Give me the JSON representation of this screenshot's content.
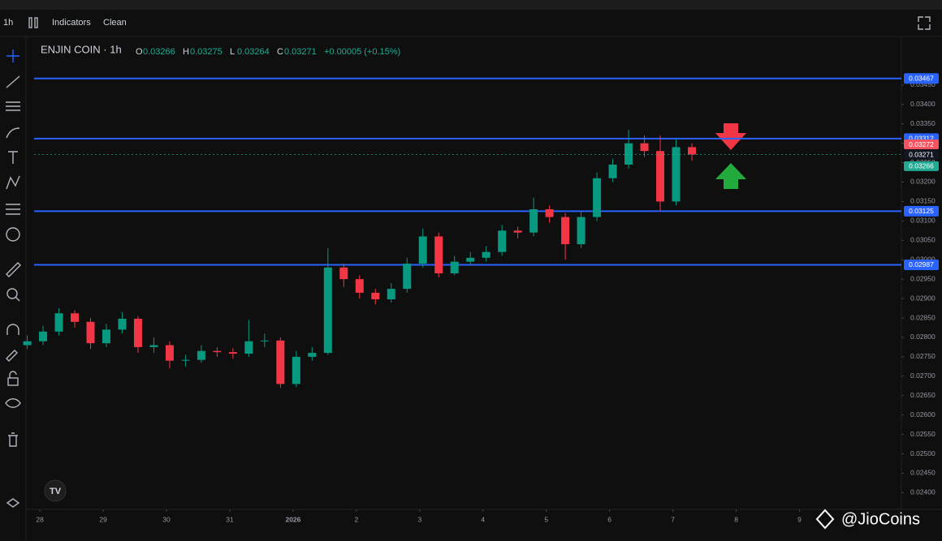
{
  "toolbar": {
    "interval": "1h",
    "indicators": "Indicators",
    "clean": "Clean"
  },
  "chart_data": {
    "type": "candlestick",
    "symbol": "ENJIN COIN · 1h",
    "ohlc_legend": [
      {
        "key": "O",
        "value": "0.03266"
      },
      {
        "key": "H",
        "value": "0.03275"
      },
      {
        "key": "L",
        "value": "0.03264"
      },
      {
        "key": "C",
        "value": "0.03271"
      }
    ],
    "change": "+0.00005 (+0.15%)",
    "x": [
      -0.2,
      0.05,
      0.3,
      0.55,
      0.8,
      1.05,
      1.3,
      1.55,
      1.8,
      2.05,
      2.3,
      2.55,
      2.8,
      3.05,
      3.3,
      3.55,
      3.8,
      4.05,
      4.3,
      4.55,
      4.8,
      5.05,
      5.3,
      5.55,
      5.8,
      6.05,
      6.3,
      6.55,
      6.8,
      7.05,
      7.3,
      7.55,
      7.8,
      8.05,
      8.3,
      8.55,
      8.8,
      9.05,
      9.3,
      9.55,
      9.8,
      10.05,
      10.3
    ],
    "open": [
      0.0278,
      0.0279,
      0.02815,
      0.02862,
      0.0284,
      0.02785,
      0.0282,
      0.02848,
      0.02775,
      0.0278,
      0.0274,
      0.02742,
      0.02765,
      0.02762,
      0.02758,
      0.0279,
      0.02792,
      0.0268,
      0.0275,
      0.0276,
      0.0298,
      0.0295,
      0.02915,
      0.02898,
      0.02925,
      0.0299,
      0.0306,
      0.02965,
      0.02995,
      0.03005,
      0.0302,
      0.03075,
      0.0307,
      0.0313,
      0.0311,
      0.0304,
      0.0311,
      0.0321,
      0.03245,
      0.033,
      0.0328,
      0.0315,
      0.0329
    ],
    "high": [
      0.02805,
      0.0283,
      0.02875,
      0.0287,
      0.0285,
      0.02835,
      0.02865,
      0.02855,
      0.028,
      0.0279,
      0.02755,
      0.0278,
      0.02775,
      0.02772,
      0.02845,
      0.0281,
      0.028,
      0.02765,
      0.02775,
      0.0303,
      0.0299,
      0.0296,
      0.02925,
      0.0294,
      0.03005,
      0.0308,
      0.0307,
      0.0301,
      0.0302,
      0.03035,
      0.0309,
      0.03085,
      0.0316,
      0.0314,
      0.0312,
      0.03125,
      0.03225,
      0.0326,
      0.03335,
      0.0332,
      0.0332,
      0.0331,
      0.033
    ],
    "low": [
      0.0277,
      0.0278,
      0.02805,
      0.02825,
      0.0277,
      0.02775,
      0.0281,
      0.0276,
      0.0276,
      0.0272,
      0.02725,
      0.02735,
      0.0275,
      0.02745,
      0.0275,
      0.02775,
      0.0267,
      0.02672,
      0.0274,
      0.02755,
      0.0293,
      0.029,
      0.02885,
      0.0289,
      0.02915,
      0.0298,
      0.02955,
      0.0296,
      0.02985,
      0.02995,
      0.0301,
      0.03055,
      0.0306,
      0.03095,
      0.03,
      0.0303,
      0.031,
      0.032,
      0.03235,
      0.03265,
      0.03125,
      0.0314,
      0.03255
    ],
    "close": [
      0.0279,
      0.02815,
      0.02862,
      0.0284,
      0.02785,
      0.0282,
      0.02848,
      0.02775,
      0.0278,
      0.0274,
      0.02742,
      0.02765,
      0.02762,
      0.02758,
      0.0279,
      0.02792,
      0.0268,
      0.0275,
      0.0276,
      0.0298,
      0.0295,
      0.02915,
      0.02898,
      0.02925,
      0.0299,
      0.0306,
      0.02965,
      0.02995,
      0.03005,
      0.0302,
      0.03075,
      0.0307,
      0.0313,
      0.0311,
      0.0304,
      0.0311,
      0.0321,
      0.03245,
      0.033,
      0.0328,
      0.0315,
      0.0329,
      0.03271
    ],
    "up_color": "#089981",
    "down_color": "#f23645",
    "ylim": [
      0.02357,
      0.03575
    ],
    "yticks": [
      {
        "value": 0.024,
        "label": "0.02400"
      },
      {
        "value": 0.0245,
        "label": "0.02450"
      },
      {
        "value": 0.025,
        "label": "0.02500"
      },
      {
        "value": 0.0255,
        "label": "0.02550"
      },
      {
        "value": 0.026,
        "label": "0.02600"
      },
      {
        "value": 0.0265,
        "label": "0.02650"
      },
      {
        "value": 0.027,
        "label": "0.02700"
      },
      {
        "value": 0.0275,
        "label": "0.02750"
      },
      {
        "value": 0.028,
        "label": "0.02800"
      },
      {
        "value": 0.0285,
        "label": "0.02850"
      },
      {
        "value": 0.029,
        "label": "0.02900"
      },
      {
        "value": 0.0295,
        "label": "0.02950"
      },
      {
        "value": 0.03,
        "label": "0.03000"
      },
      {
        "value": 0.0305,
        "label": "0.03050"
      },
      {
        "value": 0.031,
        "label": "0.03100"
      },
      {
        "value": 0.0315,
        "label": "0.03150"
      },
      {
        "value": 0.032,
        "label": "0.03200"
      },
      {
        "value": 0.0325,
        "label": "0.03250"
      },
      {
        "value": 0.033,
        "label": "0.03300"
      },
      {
        "value": 0.0335,
        "label": "0.03350"
      },
      {
        "value": 0.034,
        "label": "0.03400"
      },
      {
        "value": 0.0345,
        "label": "0.03450"
      }
    ],
    "xlim": [
      -0.22,
      13.61
    ],
    "xticks": [
      {
        "value": 0,
        "label": "28"
      },
      {
        "value": 1,
        "label": "29"
      },
      {
        "value": 2,
        "label": "30"
      },
      {
        "value": 3,
        "label": "31"
      },
      {
        "value": 4,
        "label": "2026"
      },
      {
        "value": 5,
        "label": "2"
      },
      {
        "value": 6,
        "label": "3"
      },
      {
        "value": 7,
        "label": "4"
      },
      {
        "value": 8,
        "label": "5"
      },
      {
        "value": 9,
        "label": "6"
      },
      {
        "value": 10,
        "label": "7"
      },
      {
        "value": 11,
        "label": "8"
      },
      {
        "value": 12,
        "label": "9"
      }
    ],
    "levels": [
      {
        "value": 0.03467,
        "label": "0.03467"
      },
      {
        "value": 0.03312,
        "label": "0.03312"
      },
      {
        "value": 0.03125,
        "label": "0.03125"
      },
      {
        "value": 0.02987,
        "label": "0.02987"
      }
    ],
    "level_color": "#2962ff",
    "price_labels": [
      {
        "value": 0.03272,
        "label": "0.03272",
        "color": "#f7525f"
      },
      {
        "value": 0.03271,
        "label": "0.03271",
        "color": "#131722"
      },
      {
        "value": 0.03266,
        "label": "0.03266",
        "color": "#22ab94"
      }
    ]
  },
  "watermark": "@JioCoins"
}
